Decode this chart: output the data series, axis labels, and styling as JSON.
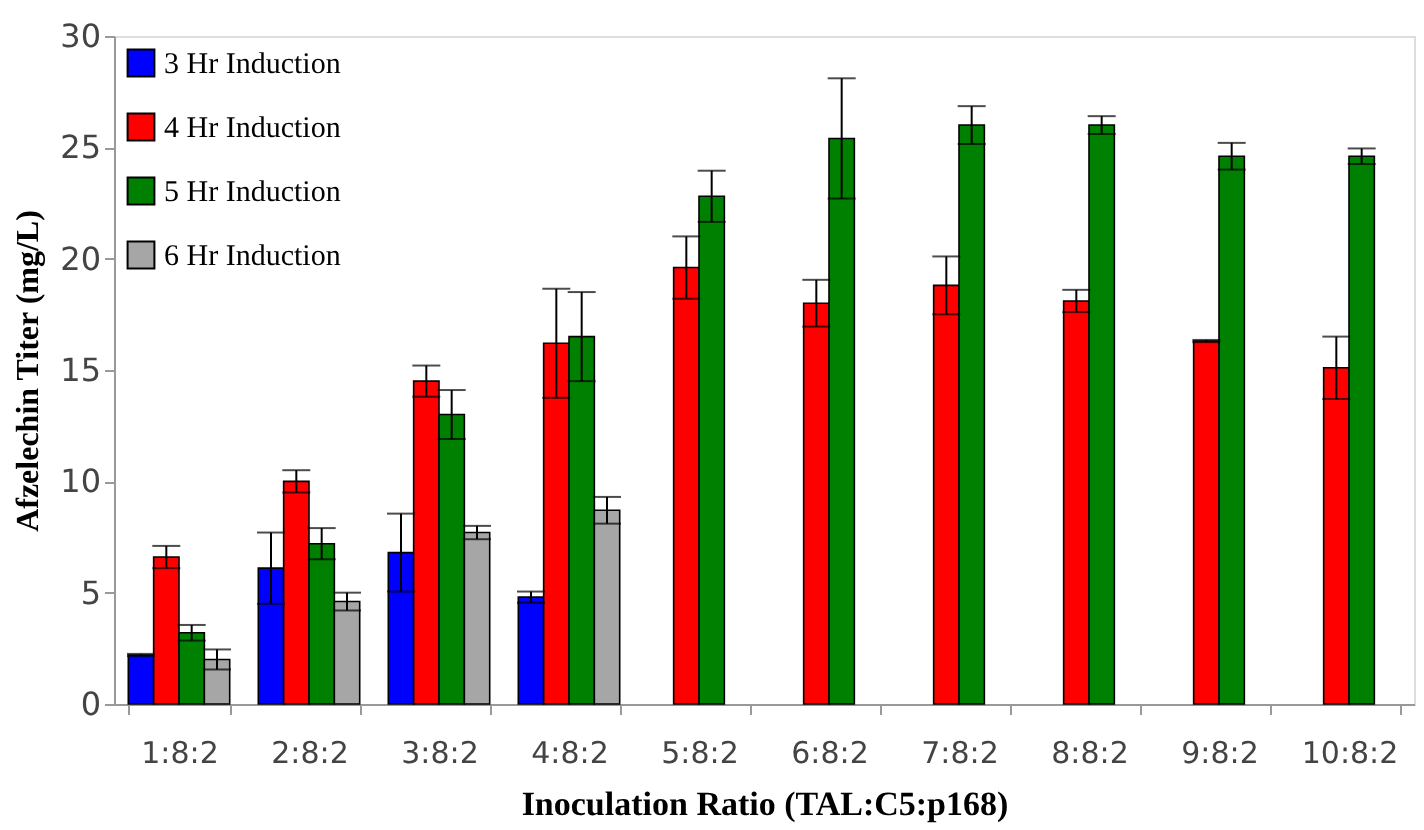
{
  "chart_data": {
    "type": "bar",
    "xlabel": "Inoculation Ratio (TAL:C5:p168)",
    "ylabel": "Afzelechin Titer (mg/L)",
    "categories": [
      "1:8:2",
      "2:8:2",
      "3:8:2",
      "4:8:2",
      "5:8:2",
      "6:8:2",
      "7:8:2",
      "8:8:2",
      "9:8:2",
      "10:8:2"
    ],
    "series": [
      {
        "name": "3 Hr Induction",
        "color": "#0000ff",
        "values": [
          2.2,
          6.1,
          6.8,
          4.8,
          null,
          null,
          null,
          null,
          null,
          null
        ],
        "errors": [
          0.05,
          1.6,
          1.75,
          0.25,
          null,
          null,
          null,
          null,
          null,
          null
        ]
      },
      {
        "name": "4 Hr Induction",
        "color": "#ff0000",
        "values": [
          6.6,
          10.0,
          14.5,
          16.2,
          19.6,
          18.0,
          18.8,
          18.1,
          16.3,
          15.1
        ],
        "errors": [
          0.5,
          0.5,
          0.7,
          2.45,
          1.4,
          1.05,
          1.3,
          0.5,
          0.05,
          1.4
        ]
      },
      {
        "name": "5 Hr Induction",
        "color": "#008000",
        "values": [
          3.2,
          7.2,
          13.0,
          16.5,
          22.8,
          25.4,
          26.0,
          26.0,
          24.6,
          24.6
        ],
        "errors": [
          0.35,
          0.7,
          1.1,
          2.0,
          1.15,
          2.7,
          0.85,
          0.4,
          0.6,
          0.35
        ]
      },
      {
        "name": "6 Hr Induction",
        "color": "#a6a6a6",
        "values": [
          2.0,
          4.6,
          7.7,
          8.7,
          null,
          null,
          null,
          null,
          null,
          null
        ],
        "errors": [
          0.45,
          0.4,
          0.3,
          0.6,
          null,
          null,
          null,
          null,
          null,
          null
        ]
      }
    ],
    "ylim": [
      0,
      30
    ],
    "yticks": [
      0,
      5,
      10,
      15,
      20,
      25,
      30
    ],
    "grid": false,
    "legend": "top left"
  }
}
